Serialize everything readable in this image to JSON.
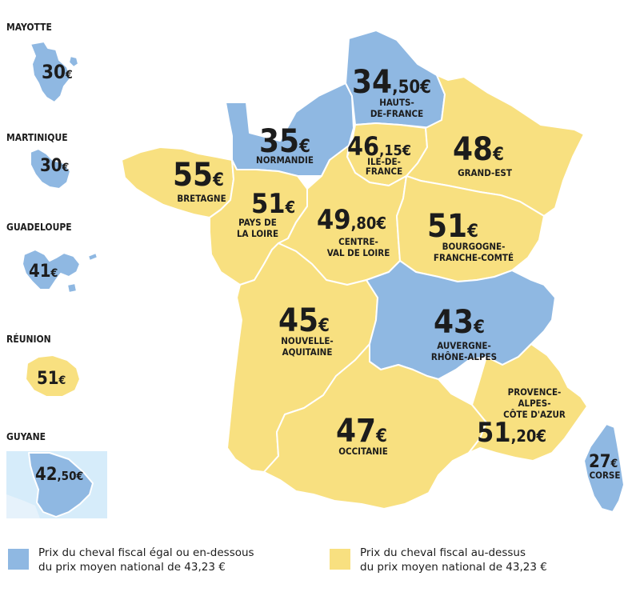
{
  "colors": {
    "blue": "#8fb8e2",
    "yellow": "#f8e080"
  },
  "overseas": [
    {
      "title": "MAYOTTE",
      "price": "30",
      "currency": "€"
    },
    {
      "title": "MARTINIQUE",
      "price": "30",
      "currency": "€"
    },
    {
      "title": "GUADELOUPE",
      "price": "41",
      "currency": "€"
    },
    {
      "title": "RÉUNION",
      "price": "51",
      "currency": "€"
    },
    {
      "title": "GUYANE",
      "price": "42",
      "cents": ",50",
      "currency": "€"
    }
  ],
  "regions": [
    {
      "name": [
        "HAUTS-",
        "DE-FRANCE"
      ],
      "price": "34",
      "cents": ",50",
      "currency": "€",
      "category": "below"
    },
    {
      "name": [
        "NORMANDIE"
      ],
      "price": "35",
      "currency": "€",
      "category": "below"
    },
    {
      "name": [
        "ILE-DE-",
        "FRANCE"
      ],
      "price": "46",
      "cents": ",15",
      "currency": "€",
      "category": "above"
    },
    {
      "name": [
        "GRAND-EST"
      ],
      "price": "48",
      "currency": "€",
      "category": "above"
    },
    {
      "name": [
        "BRETAGNE"
      ],
      "price": "55",
      "currency": "€",
      "category": "above"
    },
    {
      "name": [
        "PAYS DE",
        "LA LOIRE"
      ],
      "price": "51",
      "currency": "€",
      "category": "above"
    },
    {
      "name": [
        "CENTRE-",
        "VAL DE LOIRE"
      ],
      "price": "49",
      "cents": ",80",
      "currency": "€",
      "category": "above"
    },
    {
      "name": [
        "BOURGOGNE-",
        "FRANCHE-COMTÉ"
      ],
      "price": "51",
      "currency": "€",
      "category": "above"
    },
    {
      "name": [
        "NOUVELLE-",
        "AQUITAINE"
      ],
      "price": "45",
      "currency": "€",
      "category": "above"
    },
    {
      "name": [
        "AUVERGNE-",
        "RHÔNE-ALPES"
      ],
      "price": "43",
      "currency": "€",
      "category": "below"
    },
    {
      "name": [
        "PROVENCE-",
        "ALPES-",
        "CÔTE D'AZUR"
      ],
      "price": "51",
      "cents": ",20",
      "currency": "€",
      "category": "above"
    },
    {
      "name": [
        "OCCITANIE"
      ],
      "price": "47",
      "currency": "€",
      "category": "above"
    },
    {
      "name": [
        "CORSE"
      ],
      "price": "27",
      "currency": "€",
      "category": "below"
    }
  ],
  "legend": {
    "below": [
      "Prix du cheval fiscal égal ou en-dessous",
      "du prix moyen national de 43,23 €"
    ],
    "above": [
      "Prix du cheval fiscal au-dessus",
      "du prix moyen national de 43,23 €"
    ]
  }
}
